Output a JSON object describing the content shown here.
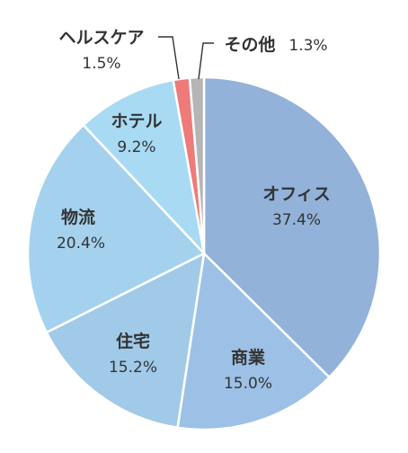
{
  "chart_data": {
    "type": "pie",
    "start_angle_deg": 0,
    "direction": "clockwise",
    "slices": [
      {
        "label": "オフィス",
        "value": 37.4,
        "value_text": "37.4%",
        "color": "#92b2da"
      },
      {
        "label": "商業",
        "value": 15.0,
        "value_text": "15.0%",
        "color": "#9dc1e6"
      },
      {
        "label": "住宅",
        "value": 15.2,
        "value_text": "15.2%",
        "color": "#a0cae8"
      },
      {
        "label": "物流",
        "value": 20.4,
        "value_text": "20.4%",
        "color": "#a4d2ee"
      },
      {
        "label": "ホテル",
        "value": 9.2,
        "value_text": "9.2%",
        "color": "#a8dbf3"
      },
      {
        "label": "ヘルスケア",
        "value": 1.5,
        "value_text": "1.5%",
        "color": "#ee7a7a"
      },
      {
        "label": "その他",
        "value": 1.3,
        "value_text": "1.3%",
        "color": "#b5b5b5"
      }
    ]
  }
}
